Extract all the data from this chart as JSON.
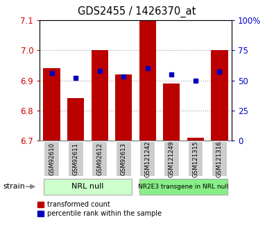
{
  "title": "GDS2455 / 1426370_at",
  "samples": [
    "GSM92610",
    "GSM92611",
    "GSM92612",
    "GSM92613",
    "GSM121242",
    "GSM121249",
    "GSM121315",
    "GSM121316"
  ],
  "red_values": [
    6.94,
    6.84,
    7.0,
    6.92,
    7.1,
    6.89,
    6.71,
    7.0
  ],
  "blue_values": [
    56,
    52,
    58,
    53,
    60,
    55,
    50,
    57
  ],
  "ylim_left": [
    6.7,
    7.1
  ],
  "ylim_right": [
    0,
    100
  ],
  "yticks_left": [
    6.7,
    6.8,
    6.9,
    7.0,
    7.1
  ],
  "yticks_right": [
    0,
    25,
    50,
    75,
    100
  ],
  "ytick_labels_right": [
    "0",
    "25",
    "50",
    "75",
    "100%"
  ],
  "group1_label": "NRL null",
  "group2_label": "NR2E3 transgene in NRL null",
  "group1_color": "#ccffcc",
  "group2_color": "#88ee88",
  "bar_color": "#bb0000",
  "dot_color": "#0000bb",
  "bar_bottom": 6.7,
  "legend_red": "transformed count",
  "legend_blue": "percentile rank within the sample",
  "strain_label": "strain",
  "left_tick_color": "#cc0000",
  "right_tick_color": "#0000cc",
  "grid_color": "#999999",
  "bg_color": "#ffffff",
  "plot_bg": "#ffffff",
  "sample_box_color": "#cccccc",
  "bar_width": 0.7
}
